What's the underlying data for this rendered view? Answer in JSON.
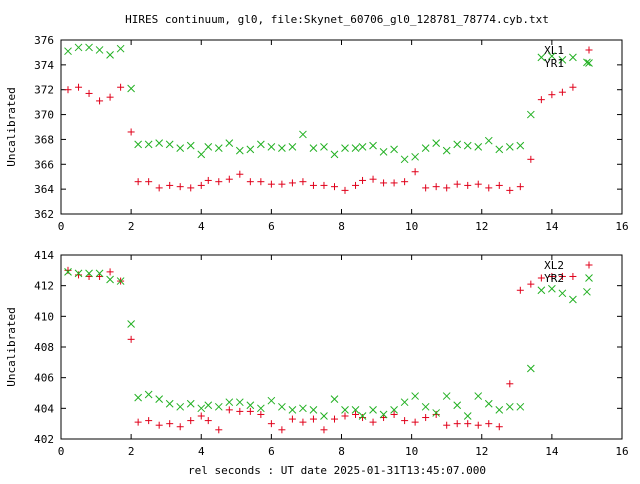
{
  "title": "HIRES continuum, gl0, file:Skynet_60706_gl0_128781_78774.cyb.txt",
  "xlabel": "rel seconds : UT date 2025-01-31T13:45:07.000",
  "colors": {
    "red": "#e0001a",
    "green": "#22b022",
    "axis": "#000000"
  },
  "chart_data": [
    {
      "type": "scatter",
      "ylabel": "Uncalibrated",
      "xlim": [
        0,
        16
      ],
      "ylim": [
        362,
        376
      ],
      "x_ticks": [
        0,
        2,
        4,
        6,
        8,
        10,
        12,
        14,
        16
      ],
      "y_ticks": [
        362,
        364,
        366,
        368,
        370,
        372,
        374,
        376
      ],
      "legend_position": "top-right",
      "series": [
        {
          "name": "XL1",
          "color": "#e0001a",
          "marker": "plus",
          "x": [
            0.2,
            0.5,
            0.8,
            1.1,
            1.4,
            1.7,
            2.0,
            2.2,
            2.5,
            2.8,
            3.1,
            3.4,
            3.7,
            4.0,
            4.2,
            4.5,
            4.8,
            5.1,
            5.4,
            5.7,
            6.0,
            6.3,
            6.6,
            6.9,
            7.2,
            7.5,
            7.8,
            8.1,
            8.4,
            8.6,
            8.9,
            9.2,
            9.5,
            9.8,
            10.1,
            10.4,
            10.7,
            11.0,
            11.3,
            11.6,
            11.9,
            12.2,
            12.5,
            12.8,
            13.1,
            13.4,
            13.7,
            14.0,
            14.3,
            14.6
          ],
          "y": [
            372.0,
            372.2,
            371.7,
            371.1,
            371.4,
            372.2,
            368.6,
            364.6,
            364.6,
            364.1,
            364.3,
            364.2,
            364.1,
            364.3,
            364.7,
            364.6,
            364.8,
            365.2,
            364.6,
            364.6,
            364.4,
            364.4,
            364.5,
            364.6,
            364.3,
            364.3,
            364.2,
            363.9,
            364.3,
            364.7,
            364.8,
            364.5,
            364.5,
            364.6,
            365.4,
            364.1,
            364.2,
            364.1,
            364.4,
            364.3,
            364.4,
            364.1,
            364.3,
            363.9,
            364.2,
            366.4,
            371.2,
            371.6,
            371.8,
            372.2
          ]
        },
        {
          "name": "YR1",
          "color": "#22b022",
          "marker": "cross",
          "x": [
            0.2,
            0.5,
            0.8,
            1.1,
            1.4,
            1.7,
            2.0,
            2.2,
            2.5,
            2.8,
            3.1,
            3.4,
            3.7,
            4.0,
            4.2,
            4.5,
            4.8,
            5.1,
            5.4,
            5.7,
            6.0,
            6.3,
            6.6,
            6.9,
            7.2,
            7.5,
            7.8,
            8.1,
            8.4,
            8.6,
            8.9,
            9.2,
            9.5,
            9.8,
            10.1,
            10.4,
            10.7,
            11.0,
            11.3,
            11.6,
            11.9,
            12.2,
            12.5,
            12.8,
            13.1,
            13.4,
            13.7,
            14.0,
            14.3,
            14.6,
            15.0
          ],
          "y": [
            375.1,
            375.4,
            375.4,
            375.2,
            374.8,
            375.3,
            372.1,
            367.6,
            367.6,
            367.7,
            367.6,
            367.3,
            367.5,
            366.8,
            367.4,
            367.3,
            367.7,
            367.1,
            367.2,
            367.6,
            367.4,
            367.3,
            367.4,
            368.4,
            367.3,
            367.4,
            366.8,
            367.3,
            367.3,
            367.4,
            367.5,
            367.0,
            367.2,
            366.4,
            366.6,
            367.3,
            367.7,
            367.1,
            367.6,
            367.5,
            367.4,
            367.9,
            367.2,
            367.4,
            367.5,
            370.0,
            374.6,
            374.7,
            374.4,
            374.6,
            374.2
          ]
        }
      ]
    },
    {
      "type": "scatter",
      "ylabel": "Uncalibrated",
      "xlim": [
        0,
        16
      ],
      "ylim": [
        402,
        414
      ],
      "x_ticks": [
        0,
        2,
        4,
        6,
        8,
        10,
        12,
        14,
        16
      ],
      "y_ticks": [
        402,
        404,
        406,
        408,
        410,
        412,
        414
      ],
      "legend_position": "top-right",
      "series": [
        {
          "name": "XL2",
          "color": "#e0001a",
          "marker": "plus",
          "x": [
            0.2,
            0.5,
            0.8,
            1.1,
            1.4,
            1.7,
            2.0,
            2.2,
            2.5,
            2.8,
            3.1,
            3.4,
            3.7,
            4.0,
            4.2,
            4.5,
            4.8,
            5.1,
            5.4,
            5.7,
            6.0,
            6.3,
            6.6,
            6.9,
            7.2,
            7.5,
            7.8,
            8.1,
            8.4,
            8.6,
            8.9,
            9.2,
            9.5,
            9.8,
            10.1,
            10.4,
            10.7,
            11.0,
            11.3,
            11.6,
            11.9,
            12.2,
            12.5,
            12.8,
            13.1,
            13.4,
            13.7,
            14.0,
            14.3,
            14.6
          ],
          "y": [
            413.0,
            412.7,
            412.6,
            412.6,
            412.9,
            412.3,
            408.5,
            403.1,
            403.2,
            402.9,
            403.0,
            402.8,
            403.2,
            403.5,
            403.2,
            402.6,
            403.9,
            403.8,
            403.8,
            403.6,
            403.0,
            402.6,
            403.3,
            403.1,
            403.3,
            402.6,
            403.3,
            403.5,
            403.6,
            403.4,
            403.1,
            403.4,
            403.6,
            403.2,
            403.1,
            403.4,
            403.6,
            402.9,
            403.0,
            403.0,
            402.9,
            403.0,
            402.8,
            405.6,
            411.7,
            412.1,
            412.5,
            412.6,
            412.6,
            412.6
          ]
        },
        {
          "name": "YR2",
          "color": "#22b022",
          "marker": "cross",
          "x": [
            0.2,
            0.5,
            0.8,
            1.1,
            1.4,
            1.7,
            2.0,
            2.2,
            2.5,
            2.8,
            3.1,
            3.4,
            3.7,
            4.0,
            4.2,
            4.5,
            4.8,
            5.1,
            5.4,
            5.7,
            6.0,
            6.3,
            6.6,
            6.9,
            7.2,
            7.5,
            7.8,
            8.1,
            8.4,
            8.6,
            8.9,
            9.2,
            9.5,
            9.8,
            10.1,
            10.4,
            10.7,
            11.0,
            11.3,
            11.6,
            11.9,
            12.2,
            12.5,
            12.8,
            13.1,
            13.4,
            13.7,
            14.0,
            14.3,
            14.6,
            15.0
          ],
          "y": [
            412.9,
            412.8,
            412.8,
            412.8,
            412.4,
            412.3,
            409.5,
            404.7,
            404.9,
            404.6,
            404.3,
            404.1,
            404.3,
            404.0,
            404.2,
            404.1,
            404.4,
            404.4,
            404.2,
            404.0,
            404.5,
            404.1,
            403.9,
            404.0,
            403.9,
            403.5,
            404.6,
            403.9,
            403.9,
            403.5,
            403.9,
            403.6,
            403.9,
            404.4,
            404.8,
            404.1,
            403.7,
            404.8,
            404.2,
            403.5,
            404.8,
            404.3,
            403.9,
            404.1,
            404.1,
            406.6,
            411.7,
            411.8,
            411.5,
            411.1,
            411.6
          ]
        }
      ]
    }
  ]
}
